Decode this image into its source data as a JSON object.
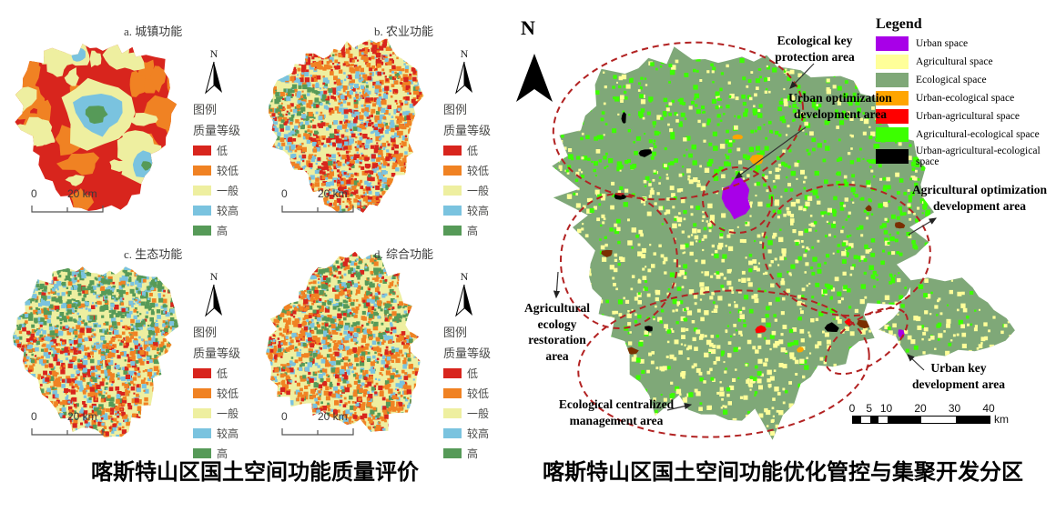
{
  "captions": {
    "left": "喀斯特山区国土空间功能质量评价",
    "right": "喀斯特山区国土空间功能优化管控与集聚开发分区"
  },
  "quality_panels": {
    "legend_title": "图例",
    "legend_subtitle": "质量等级",
    "north_label": "N",
    "scale_zero": "0",
    "scale_end": "20 km",
    "classes": [
      {
        "label": "低",
        "color": "#d8251d"
      },
      {
        "label": "较低",
        "color": "#f08223"
      },
      {
        "label": "一般",
        "color": "#eeefa0"
      },
      {
        "label": "较高",
        "color": "#7ac3df"
      },
      {
        "label": "高",
        "color": "#569a58"
      }
    ],
    "panels": [
      {
        "id": "a",
        "label": "a. 城镇功能"
      },
      {
        "id": "b",
        "label": "b. 农业功能"
      },
      {
        "id": "c",
        "label": "c. 生态功能"
      },
      {
        "id": "d",
        "label": "d. 综合功能"
      }
    ]
  },
  "zoning": {
    "north_label": "N",
    "legend_title": "Legend",
    "legend_items": [
      {
        "label": "Urban space",
        "color": "#a800e8"
      },
      {
        "label": "Agricultural space",
        "color": "#ffff99"
      },
      {
        "label": "Ecological space",
        "color": "#7fa878"
      },
      {
        "label": "Urban-ecological space",
        "color": "#ffa500"
      },
      {
        "label": "Urban-agricultural space",
        "color": "#ff0000"
      },
      {
        "label": "Agricultural-ecological space",
        "color": "#3cff00"
      },
      {
        "label": "Urban-agricultural-ecological space",
        "color": "#000000"
      }
    ],
    "annotations": [
      {
        "id": "ecological-key-protection",
        "text": "Ecological key\nprotection area"
      },
      {
        "id": "urban-optimization",
        "text": "Urban optimization\ndevelopment area"
      },
      {
        "id": "agricultural-optimization",
        "text": "Agricultural optimization\ndevelopment area"
      },
      {
        "id": "agricultural-ecology-restoration",
        "text": "Agricultural\necology\nrestoration\narea"
      },
      {
        "id": "ecological-centralized",
        "text": "Ecological centralized\nmanagement area"
      },
      {
        "id": "urban-key-development",
        "text": "Urban key\ndevelopment area"
      }
    ],
    "scalebar": {
      "ticks": [
        0,
        5,
        10,
        20,
        30,
        40
      ],
      "unit": "km"
    },
    "ellipse_color": "#b22222"
  }
}
